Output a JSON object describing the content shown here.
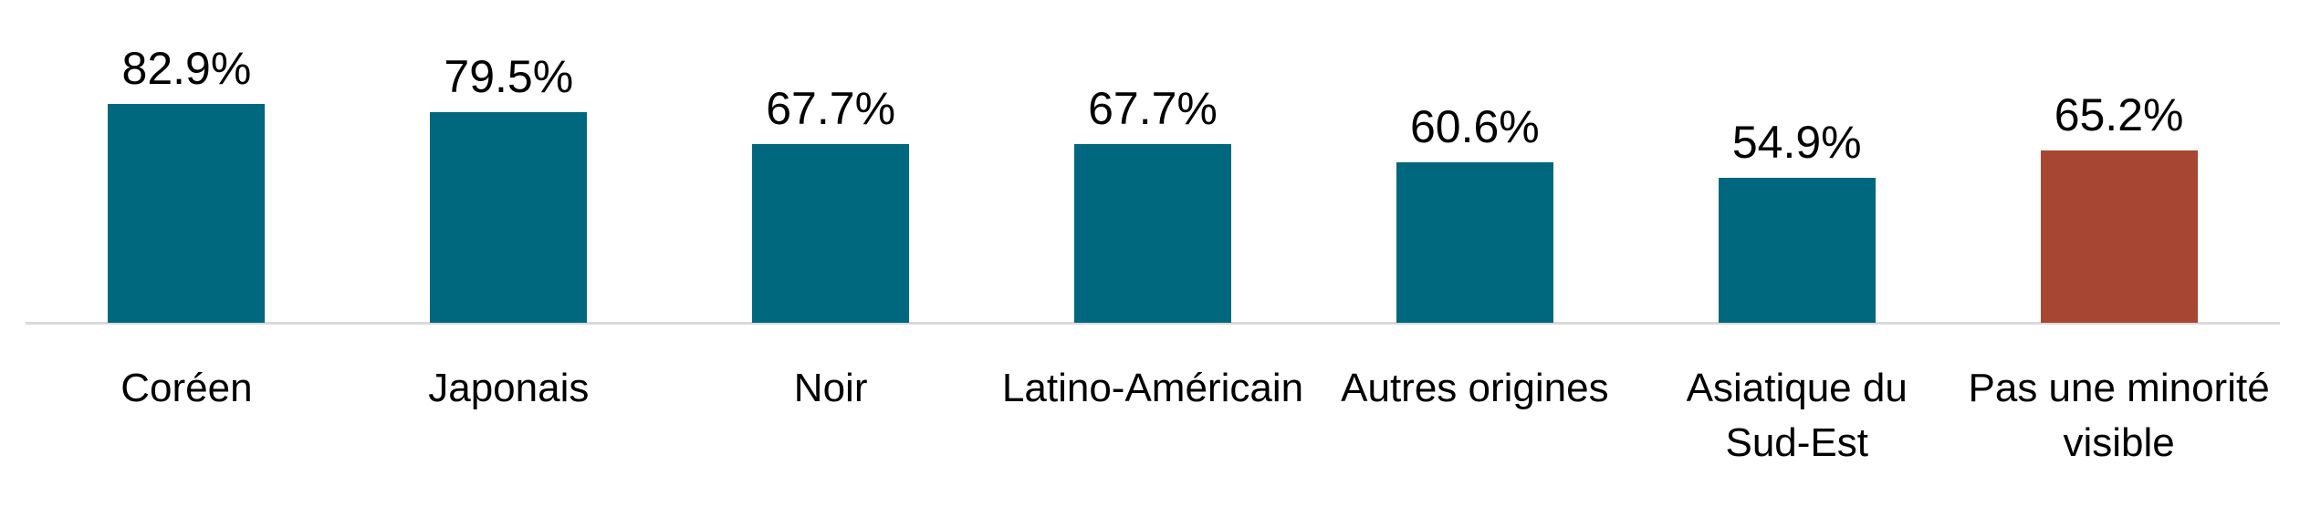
{
  "chart_data": {
    "type": "bar",
    "categories": [
      "Coréen",
      "Japonais",
      "Noir",
      "Latino-Américain",
      "Autres origines",
      "Asiatique du Sud-Est",
      "Pas une minorité visible"
    ],
    "category_label_lines": [
      [
        "Coréen"
      ],
      [
        "Japonais"
      ],
      [
        "Noir"
      ],
      [
        "Latino-Américain"
      ],
      [
        "Autres origines"
      ],
      [
        "Asiatique du",
        "Sud-Est"
      ],
      [
        "Pas une minorité",
        "visible"
      ]
    ],
    "values": [
      82.9,
      79.5,
      67.7,
      67.7,
      60.6,
      54.9,
      65.2
    ],
    "value_labels": [
      "82.9%",
      "79.5%",
      "67.7%",
      "67.7%",
      "60.6%",
      "54.9%",
      "65.2%"
    ],
    "bar_colors": [
      "#00687E",
      "#00687E",
      "#00687E",
      "#00687E",
      "#00687E",
      "#00687E",
      "#A84634"
    ],
    "title": "",
    "xlabel": "",
    "ylabel": "",
    "ylim": [
      0,
      100
    ],
    "grid": false,
    "legend": false,
    "axis_line_color": "#D9D9D9",
    "text_color": "#000000",
    "background_color": "#FFFFFF"
  }
}
